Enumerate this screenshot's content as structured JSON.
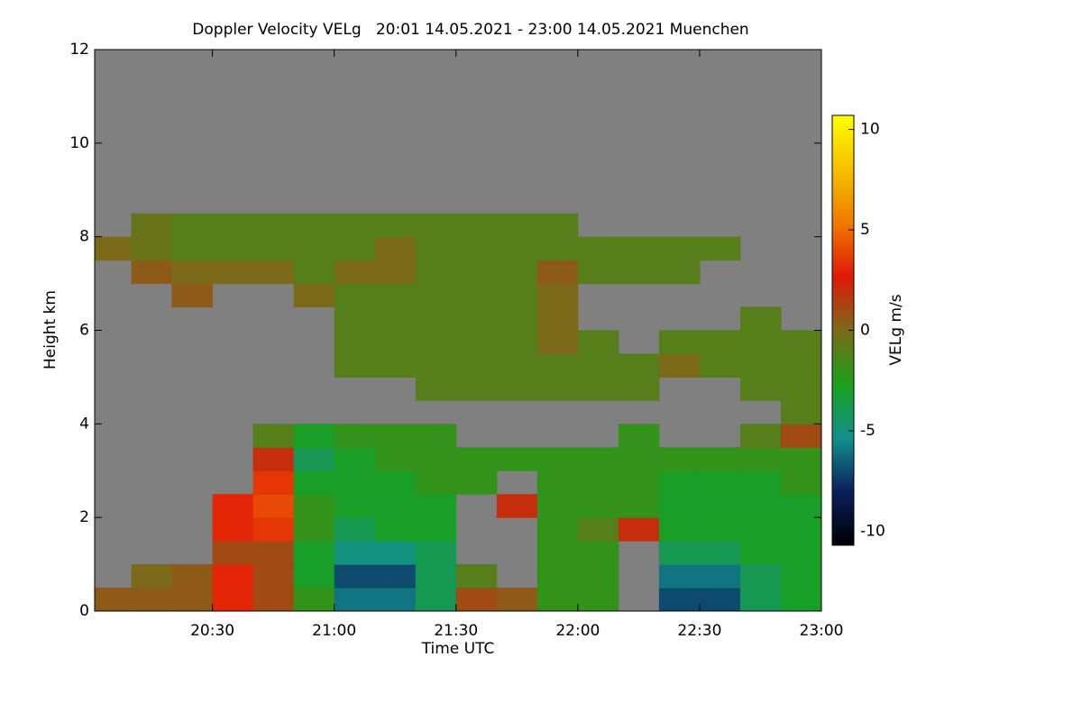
{
  "chart_data": {
    "type": "heatmap",
    "title": "Doppler Velocity VELg   20:01 14.05.2021 - 23:00 14.05.2021 Muenchen",
    "xlabel": "Time UTC",
    "ylabel": "Height km",
    "colorbar_label": "VELg m/s",
    "xlim": [
      1201,
      1380
    ],
    "xticks": [
      {
        "value": 1230,
        "label": "20:30"
      },
      {
        "value": 1260,
        "label": "21:00"
      },
      {
        "value": 1290,
        "label": "21:30"
      },
      {
        "value": 1320,
        "label": "22:00"
      },
      {
        "value": 1350,
        "label": "22:30"
      },
      {
        "value": 1380,
        "label": "23:00"
      }
    ],
    "ylim": [
      0,
      12
    ],
    "yticks": [
      0,
      2,
      4,
      6,
      8,
      10,
      12
    ],
    "clim": [
      -10.7,
      10.7
    ],
    "cticks": [
      -10,
      -5,
      0,
      5,
      10
    ],
    "colormap": [
      "#000000",
      "#0a1f5c",
      "#12908c",
      "#1aa01a",
      "#7a6a1a",
      "#e01808",
      "#f07a00",
      "#f5c000",
      "#ffff00"
    ],
    "missing_color": "#808080",
    "x": [
      1205,
      1215,
      1225,
      1235,
      1245,
      1255,
      1265,
      1275,
      1285,
      1295,
      1305,
      1315,
      1325,
      1335,
      1345,
      1355,
      1365,
      1375
    ],
    "y": [
      0.25,
      0.75,
      1.25,
      1.75,
      2.25,
      2.75,
      3.25,
      3.75,
      4.25,
      4.75,
      5.25,
      5.75,
      6.25,
      6.75,
      7.25,
      7.75,
      8.25
    ],
    "z": [
      [
        0.5,
        0.5,
        0.5,
        3,
        1,
        -2,
        -6,
        -6,
        -4,
        1,
        0.5,
        -2,
        -2,
        null,
        -7,
        -7,
        -4,
        -3
      ],
      [
        null,
        0,
        0.5,
        3,
        1,
        -3,
        -7,
        -7,
        -4,
        -1,
        null,
        -2,
        -2,
        null,
        -6,
        -6,
        -4,
        -3
      ],
      [
        null,
        null,
        null,
        1,
        1,
        -3,
        -5,
        -5,
        -4,
        null,
        null,
        -2,
        -2,
        null,
        -4,
        -4,
        -3,
        -3
      ],
      [
        null,
        null,
        null,
        3,
        3.5,
        -2,
        -4,
        -3,
        -3,
        null,
        null,
        -2,
        -1,
        2,
        -3,
        -3,
        -3,
        -3
      ],
      [
        null,
        null,
        null,
        3,
        4,
        -2,
        -3,
        -3,
        -3,
        null,
        2,
        -2,
        -2,
        -2,
        -3,
        -3,
        -3,
        -3
      ],
      [
        null,
        null,
        null,
        null,
        3.5,
        -3,
        -3,
        -3,
        -2,
        -2,
        null,
        -2,
        -2,
        -2,
        -3,
        -3,
        -3,
        -2
      ],
      [
        null,
        null,
        null,
        null,
        2,
        -4,
        -3,
        -2,
        -2,
        -2,
        -2,
        -2,
        -2,
        -2,
        -2,
        -2,
        -2,
        -2
      ],
      [
        null,
        null,
        null,
        null,
        -1,
        -3,
        -2,
        -2,
        -2,
        null,
        null,
        null,
        null,
        -2,
        null,
        null,
        -1,
        1
      ],
      [
        null,
        null,
        null,
        null,
        null,
        null,
        null,
        null,
        null,
        null,
        null,
        null,
        null,
        null,
        null,
        null,
        null,
        -1
      ],
      [
        null,
        null,
        null,
        null,
        null,
        null,
        null,
        null,
        -1,
        -1,
        -1,
        -1,
        -1,
        -1,
        null,
        null,
        -1,
        -1
      ],
      [
        null,
        null,
        null,
        null,
        null,
        null,
        -1,
        -1,
        -1,
        -1,
        -1,
        -1,
        -1,
        -1,
        0,
        -1,
        -1,
        -1
      ],
      [
        null,
        null,
        null,
        null,
        null,
        null,
        -1,
        -1,
        -1,
        -1,
        -1,
        0,
        -1,
        null,
        -1,
        -1,
        -1,
        -1
      ],
      [
        null,
        null,
        null,
        null,
        null,
        null,
        -1,
        -1,
        -1,
        -1,
        -1,
        0,
        null,
        null,
        null,
        null,
        -1,
        null
      ],
      [
        null,
        null,
        0.5,
        null,
        null,
        0,
        -1,
        -1,
        -1,
        -1,
        -1,
        0,
        null,
        null,
        null,
        null,
        null,
        null
      ],
      [
        null,
        0.5,
        0,
        0,
        0,
        -1,
        0,
        0,
        -1,
        -1,
        -1,
        0.5,
        -1,
        -1,
        -1,
        null,
        null,
        null
      ],
      [
        0,
        -0.5,
        -1,
        -1,
        -1,
        -1,
        -1,
        0,
        -1,
        -1,
        -1,
        -1,
        -1,
        -1,
        -1,
        -1,
        null,
        null
      ],
      [
        null,
        -0.5,
        -1,
        -1,
        -1,
        -1,
        -1,
        -1,
        -1,
        -1,
        -1,
        -1,
        null,
        null,
        null,
        null,
        null,
        null
      ]
    ]
  }
}
